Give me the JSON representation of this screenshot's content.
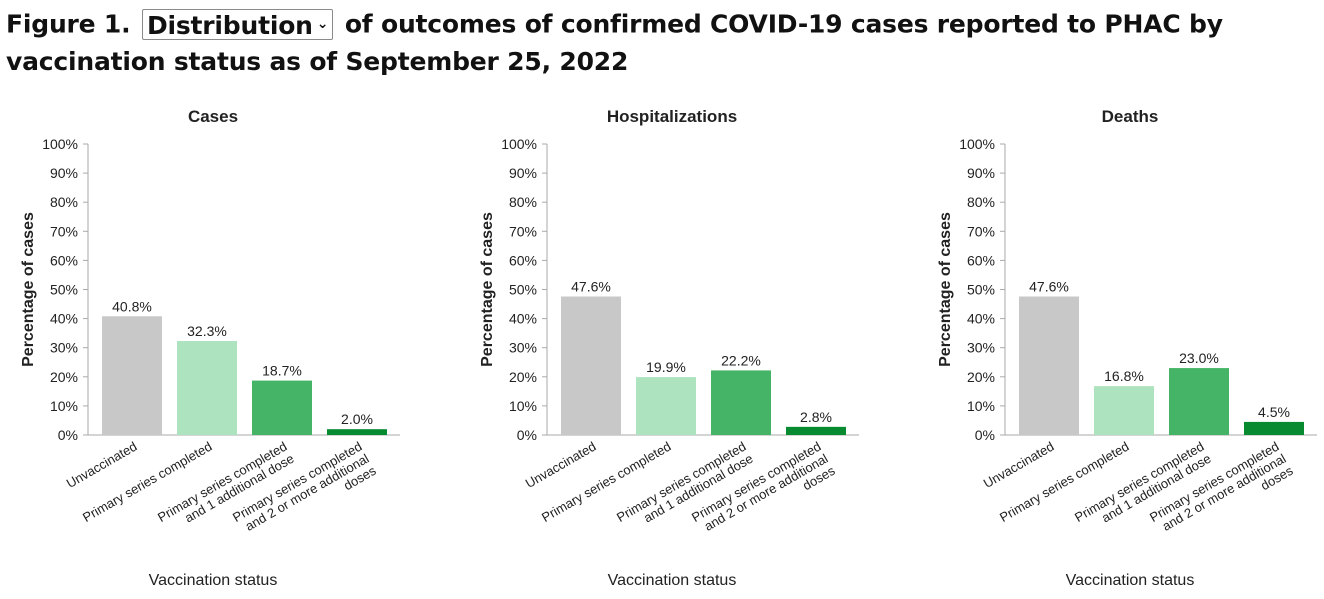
{
  "title": {
    "prefix": "Figure 1.",
    "dropdown_selected": "Distribution",
    "dropdown_icon": "chevron-down-icon",
    "suffix_line1": "of outcomes of confirmed COVID-19 cases reported to PHAC by",
    "line2": "vaccination status as of September 25, 2022"
  },
  "chart_data": [
    {
      "type": "bar",
      "title": "Cases",
      "xlabel": "Vaccination status",
      "ylabel": "Percentage of cases",
      "ylim": [
        0,
        100
      ],
      "yticks": [
        "0%",
        "10%",
        "20%",
        "30%",
        "40%",
        "50%",
        "60%",
        "70%",
        "80%",
        "90%",
        "100%"
      ],
      "categories": [
        "Unvaccinated",
        "Primary series completed",
        "Primary series completed and 1 additional dose",
        "Primary series completed and 2 or more additional doses"
      ],
      "category_lines": [
        [
          "Unvaccinated"
        ],
        [
          "Primary series completed"
        ],
        [
          "Primary series completed",
          "and 1 additional dose"
        ],
        [
          "Primary series completed",
          "and 2 or more additional",
          "doses"
        ]
      ],
      "values": [
        40.8,
        32.3,
        18.7,
        2.0
      ],
      "value_labels": [
        "40.8%",
        "32.3%",
        "18.7%",
        "2.0%"
      ],
      "colors": [
        "#c8c8c8",
        "#ade3bf",
        "#45b467",
        "#088a31"
      ],
      "grid": false,
      "legend": "none"
    },
    {
      "type": "bar",
      "title": "Hospitalizations",
      "xlabel": "Vaccination status",
      "ylabel": "Percentage of cases",
      "ylim": [
        0,
        100
      ],
      "yticks": [
        "0%",
        "10%",
        "20%",
        "30%",
        "40%",
        "50%",
        "60%",
        "70%",
        "80%",
        "90%",
        "100%"
      ],
      "categories": [
        "Unvaccinated",
        "Primary series completed",
        "Primary series completed and 1 additional dose",
        "Primary series completed and 2 or more additional doses"
      ],
      "category_lines": [
        [
          "Unvaccinated"
        ],
        [
          "Primary series completed"
        ],
        [
          "Primary series completed",
          "and 1 additional dose"
        ],
        [
          "Primary series completed",
          "and 2 or more additional",
          "doses"
        ]
      ],
      "values": [
        47.6,
        19.9,
        22.2,
        2.8
      ],
      "value_labels": [
        "47.6%",
        "19.9%",
        "22.2%",
        "2.8%"
      ],
      "colors": [
        "#c8c8c8",
        "#ade3bf",
        "#45b467",
        "#088a31"
      ],
      "grid": false,
      "legend": "none"
    },
    {
      "type": "bar",
      "title": "Deaths",
      "xlabel": "Vaccination status",
      "ylabel": "Percentage of cases",
      "ylim": [
        0,
        100
      ],
      "yticks": [
        "0%",
        "10%",
        "20%",
        "30%",
        "40%",
        "50%",
        "60%",
        "70%",
        "80%",
        "90%",
        "100%"
      ],
      "categories": [
        "Unvaccinated",
        "Primary series completed",
        "Primary series completed and 1 additional dose",
        "Primary series completed and 2 or more additional doses"
      ],
      "category_lines": [
        [
          "Unvaccinated"
        ],
        [
          "Primary series completed"
        ],
        [
          "Primary series completed",
          "and 1 additional dose"
        ],
        [
          "Primary series completed",
          "and 2 or more additional",
          "doses"
        ]
      ],
      "values": [
        47.6,
        16.8,
        23.0,
        4.5
      ],
      "value_labels": [
        "47.6%",
        "16.8%",
        "23.0%",
        "4.5%"
      ],
      "colors": [
        "#c8c8c8",
        "#ade3bf",
        "#45b467",
        "#088a31"
      ],
      "grid": false,
      "legend": "none"
    }
  ]
}
